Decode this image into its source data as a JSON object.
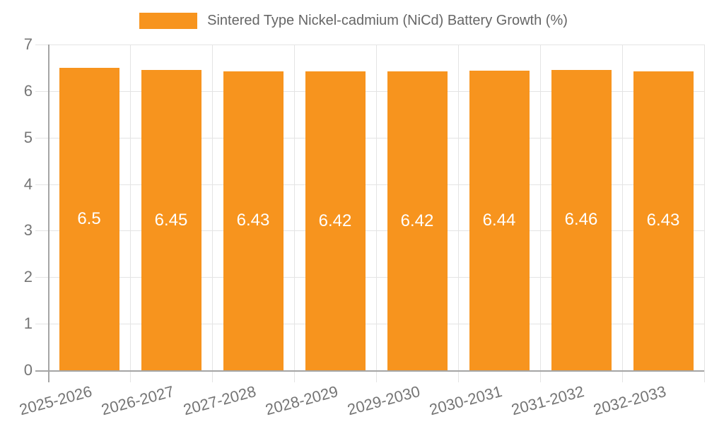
{
  "chart_data": {
    "type": "bar",
    "legend": "Sintered Type Nickel-cadmium (NiCd) Battery Growth (%)",
    "legend_position": "top",
    "categories": [
      "2025-2026",
      "2026-2027",
      "2027-2028",
      "2028-2029",
      "2029-2030",
      "2030-2031",
      "2031-2032",
      "2032-2033"
    ],
    "values": [
      6.5,
      6.45,
      6.43,
      6.42,
      6.42,
      6.44,
      6.46,
      6.43
    ],
    "bar_labels": [
      "6.5",
      "6.45",
      "6.43",
      "6.42",
      "6.42",
      "6.44",
      "6.46",
      "6.43"
    ],
    "xlabel": "",
    "ylabel": "",
    "ylim": [
      0,
      7
    ],
    "yticks": [
      0,
      1,
      2,
      3,
      4,
      5,
      6,
      7
    ],
    "grid": true,
    "colors": {
      "bar": "#f7941e",
      "grid": "#e4e4e4",
      "axis": "#a5a5a5",
      "tick_text": "#757575",
      "legend_text": "#666666",
      "bar_label": "#ffffff",
      "background": "#ffffff"
    }
  }
}
